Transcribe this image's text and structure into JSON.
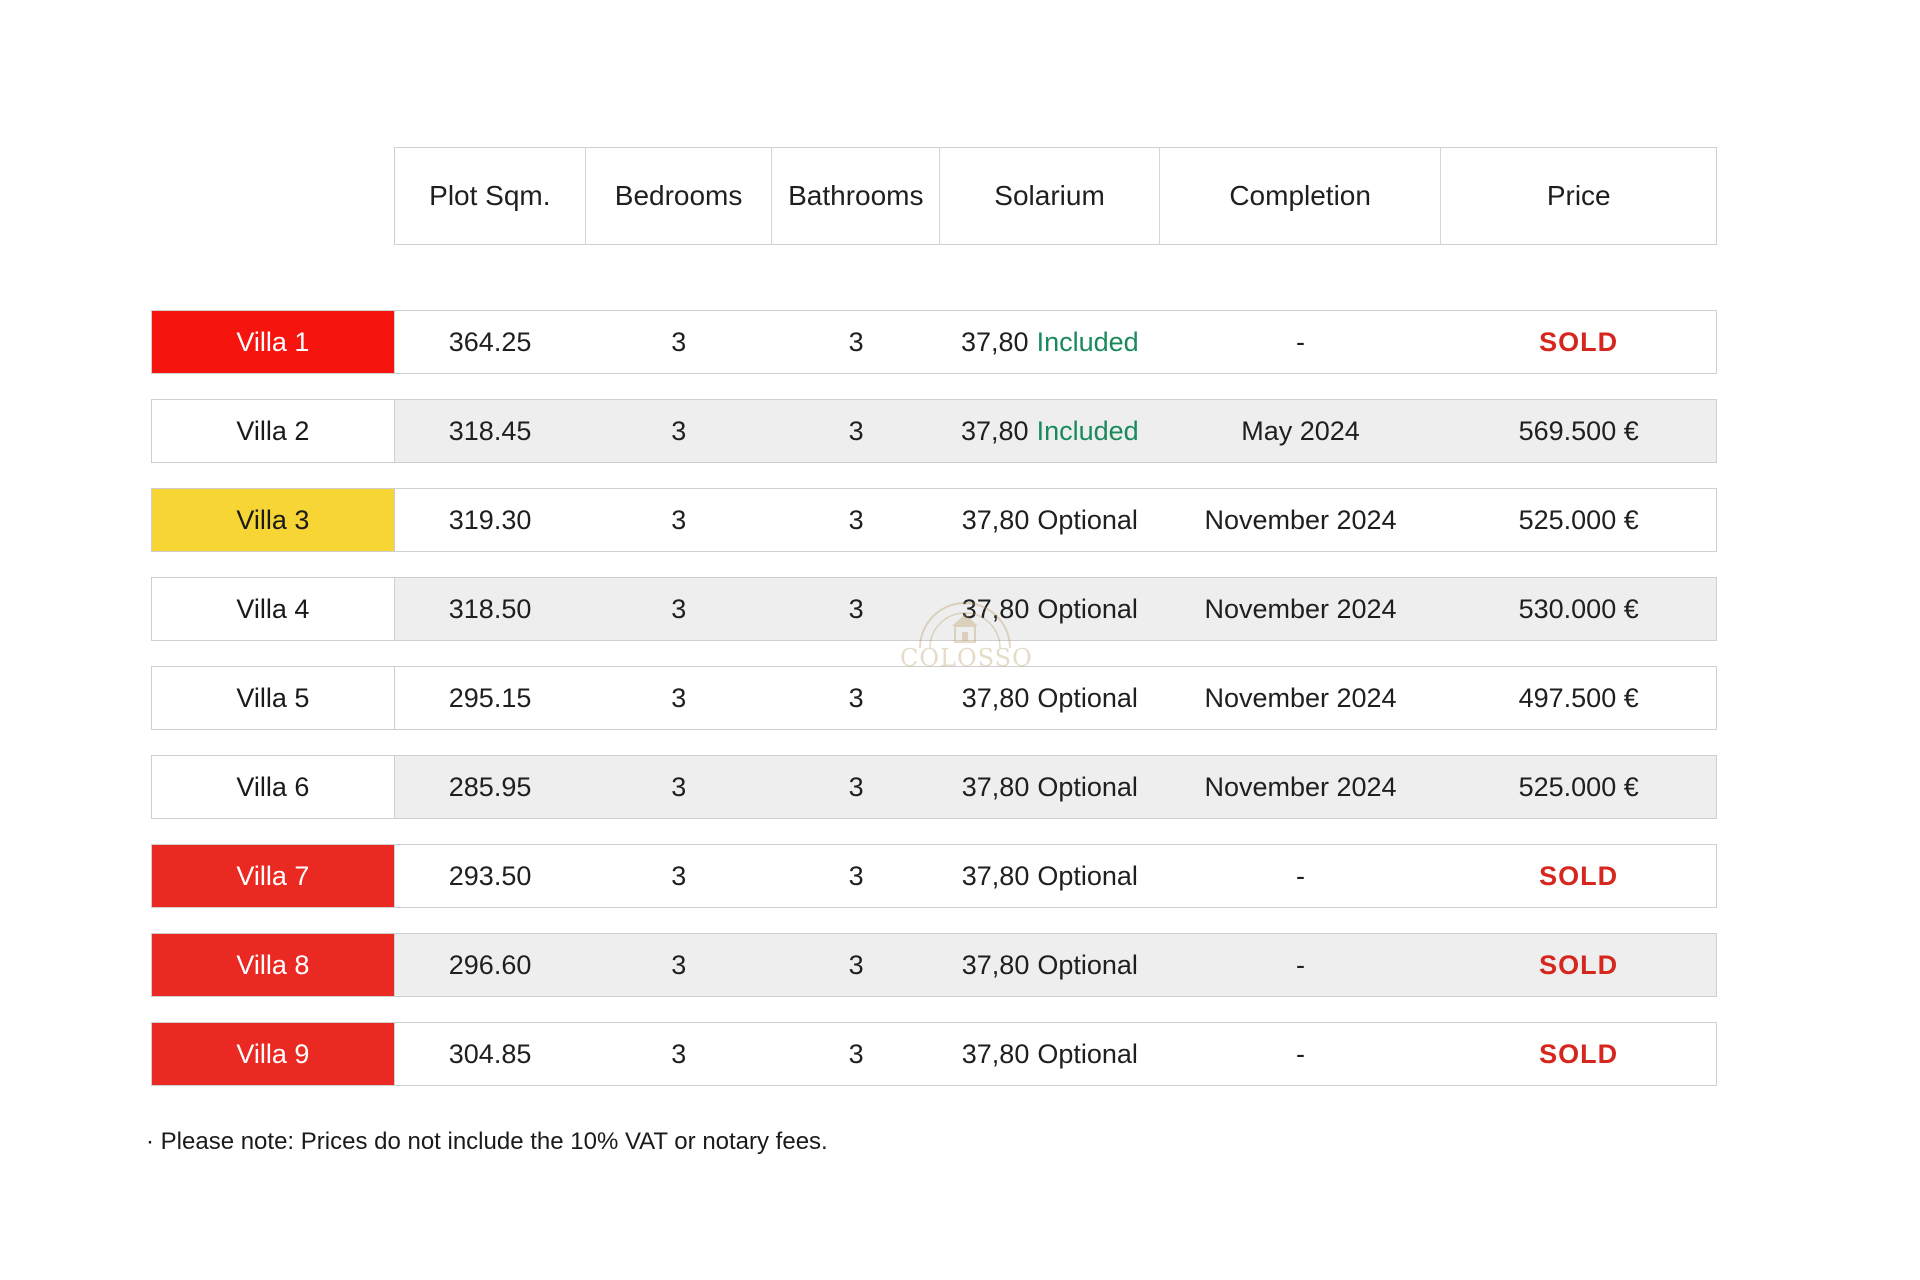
{
  "header": {
    "plot": "Plot Sqm.",
    "bedrooms": "Bedrooms",
    "bathrooms": "Bathrooms",
    "solarium": "Solarium",
    "completion": "Completion",
    "price": "Price"
  },
  "villas": [
    {
      "name": "Villa 1",
      "plot": "364.25",
      "bedrooms": "3",
      "bathrooms": "3",
      "solarium_area": "37,80",
      "solarium_status": "Included",
      "completion": "-",
      "price": "SOLD",
      "status_color": "#f5140e"
    },
    {
      "name": "Villa 2",
      "plot": "318.45",
      "bedrooms": "3",
      "bathrooms": "3",
      "solarium_area": "37,80",
      "solarium_status": "Included",
      "completion": "May 2024",
      "price": "569.500 €",
      "status_color": ""
    },
    {
      "name": "Villa 3",
      "plot": "319.30",
      "bedrooms": "3",
      "bathrooms": "3",
      "solarium_area": "37,80",
      "solarium_status": "Optional",
      "completion": "November 2024",
      "price": "525.000 €",
      "status_color": "#f6d535"
    },
    {
      "name": "Villa 4",
      "plot": "318.50",
      "bedrooms": "3",
      "bathrooms": "3",
      "solarium_area": "37,80",
      "solarium_status": "Optional",
      "completion": "November 2024",
      "price": "530.000 €",
      "status_color": ""
    },
    {
      "name": "Villa 5",
      "plot": "295.15",
      "bedrooms": "3",
      "bathrooms": "3",
      "solarium_area": "37,80",
      "solarium_status": "Optional",
      "completion": "November 2024",
      "price": "497.500 €",
      "status_color": ""
    },
    {
      "name": "Villa 6",
      "plot": "285.95",
      "bedrooms": "3",
      "bathrooms": "3",
      "solarium_area": "37,80",
      "solarium_status": "Optional",
      "completion": "November 2024",
      "price": "525.000 €",
      "status_color": ""
    },
    {
      "name": "Villa 7",
      "plot": "293.50",
      "bedrooms": "3",
      "bathrooms": "3",
      "solarium_area": "37,80",
      "solarium_status": "Optional",
      "completion": "-",
      "price": "SOLD",
      "status_color": "#ea2a22"
    },
    {
      "name": "Villa 8",
      "plot": "296.60",
      "bedrooms": "3",
      "bathrooms": "3",
      "solarium_area": "37,80",
      "solarium_status": "Optional",
      "completion": "-",
      "price": "SOLD",
      "status_color": "#ea2a22"
    },
    {
      "name": "Villa 9",
      "plot": "304.85",
      "bedrooms": "3",
      "bathrooms": "3",
      "solarium_area": "37,80",
      "solarium_status": "Optional",
      "completion": "-",
      "price": "SOLD",
      "status_color": "#ea2a22"
    }
  ],
  "colors": {
    "sold_text": "#d6271f",
    "included_text": "#1a8a5a",
    "row_shade": "#eeeeee"
  },
  "note": "· Please note: Prices do not include the 10% VAT or notary fees.",
  "watermark": {
    "text": "COLOSSO",
    "icon": "house-seal-icon"
  }
}
